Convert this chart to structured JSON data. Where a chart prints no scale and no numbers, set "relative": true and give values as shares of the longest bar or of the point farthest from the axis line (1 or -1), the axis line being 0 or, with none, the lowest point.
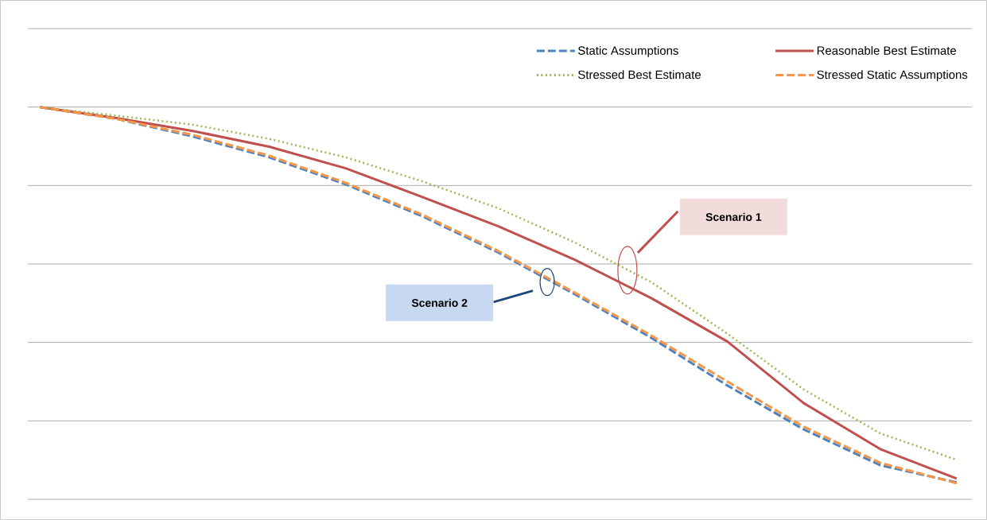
{
  "chart_data": {
    "type": "line",
    "relative": true,
    "grid": "y",
    "legend": "top right",
    "categories": [
      null,
      null,
      null,
      null,
      null,
      null,
      null,
      null,
      null,
      null,
      null,
      null,
      null
    ],
    "series": [
      {
        "name": "Static Assumptions",
        "color": "#4f81bd",
        "line_style": "dashed",
        "values": [
          1,
          0.97,
          0.925,
          0.872,
          0.803,
          0.722,
          0.629,
          0.523,
          0.412,
          0.29,
          0.178,
          0.087,
          0.043
        ]
      },
      {
        "name": "Reasonable Best Estimate",
        "color": "#c0504d",
        "line_style": "solid",
        "values": [
          1,
          0.972,
          0.939,
          0.899,
          0.844,
          0.771,
          0.696,
          0.611,
          0.513,
          0.402,
          0.245,
          0.128,
          0.053
        ]
      },
      {
        "name": "Stressed Best Estimate",
        "color": "#9bbb59",
        "line_style": "dotted",
        "values": [
          1,
          0.978,
          0.955,
          0.919,
          0.872,
          0.811,
          0.742,
          0.655,
          0.554,
          0.422,
          0.28,
          0.168,
          0.101
        ]
      },
      {
        "name": "Stressed Static Assumptions",
        "color": "#f79646",
        "line_style": "dashed",
        "values": [
          1,
          0.97,
          0.929,
          0.876,
          0.807,
          0.726,
          0.633,
          0.527,
          0.418,
          0.3,
          0.185,
          0.093,
          0.041
        ]
      }
    ],
    "annotations": [
      "Scenario 1",
      "Scenario 2"
    ]
  }
}
